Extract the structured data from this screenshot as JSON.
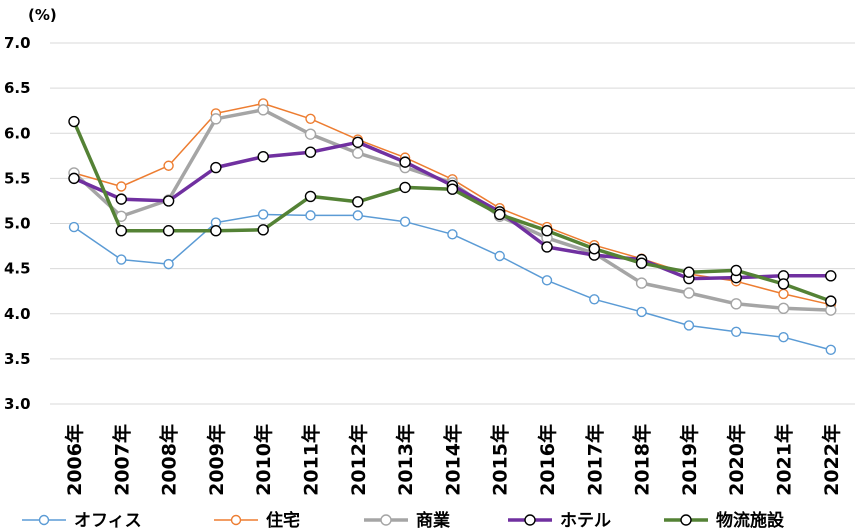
{
  "chart_data": {
    "type": "line",
    "unit_label": "(%)",
    "ylim": [
      3.0,
      7.0
    ],
    "y_ticks": [
      "3.0",
      "3.5",
      "4.0",
      "4.5",
      "5.0",
      "5.5",
      "6.0",
      "6.5",
      "7.0"
    ],
    "grid": true,
    "legend_position": "bottom",
    "categories": [
      "2006年",
      "2007年",
      "2008年",
      "2009年",
      "2010年",
      "2011年",
      "2012年",
      "2013年",
      "2014年",
      "2015年",
      "2016年",
      "2017年",
      "2018年",
      "2019年",
      "2020年",
      "2021年",
      "2022年"
    ],
    "series": [
      {
        "name": "オフィス",
        "color": "#5b9bd5",
        "values": [
          4.96,
          4.6,
          4.55,
          5.01,
          5.1,
          5.09,
          5.09,
          5.02,
          4.88,
          4.64,
          4.37,
          4.16,
          4.02,
          3.87,
          3.8,
          3.74,
          3.6
        ]
      },
      {
        "name": "住宅",
        "color": "#ed7d31",
        "values": [
          5.56,
          5.41,
          5.64,
          6.22,
          6.33,
          6.16,
          5.93,
          5.73,
          5.49,
          5.17,
          4.96,
          4.76,
          4.61,
          4.44,
          4.36,
          4.22,
          4.1
        ]
      },
      {
        "name": "商業",
        "color": "#a5a5a5",
        "values": [
          5.56,
          5.08,
          5.26,
          6.16,
          6.26,
          5.99,
          5.78,
          5.62,
          5.45,
          5.08,
          4.84,
          4.67,
          4.34,
          4.23,
          4.11,
          4.06,
          4.04
        ]
      },
      {
        "name": "ホテル",
        "color": "#7030a0",
        "values": [
          5.5,
          5.27,
          5.25,
          5.62,
          5.74,
          5.79,
          5.9,
          5.68,
          5.42,
          5.13,
          4.74,
          4.65,
          4.6,
          4.39,
          4.4,
          4.42,
          4.42
        ]
      },
      {
        "name": "物流施設",
        "color": "#548235",
        "values": [
          6.13,
          4.92,
          4.92,
          4.92,
          4.93,
          5.3,
          5.24,
          5.4,
          5.38,
          5.1,
          4.92,
          4.72,
          4.56,
          4.46,
          4.48,
          4.33,
          4.14
        ]
      }
    ]
  }
}
